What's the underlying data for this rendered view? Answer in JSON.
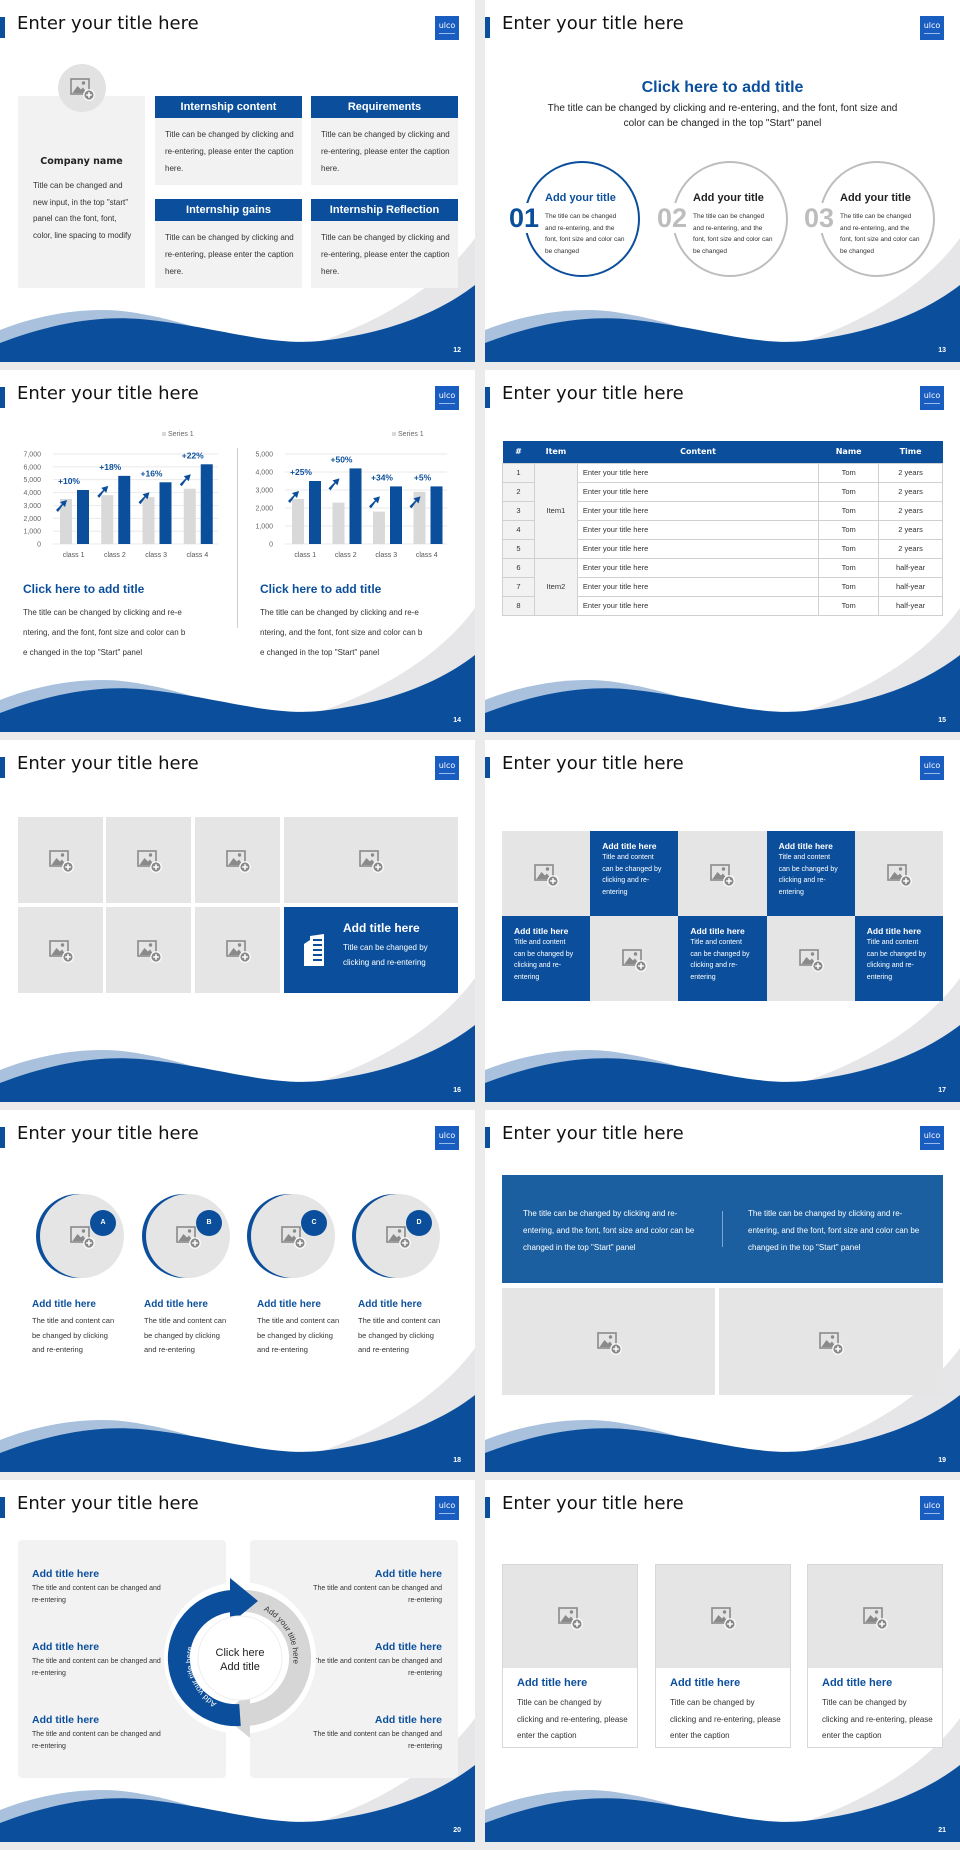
{
  "common": {
    "title": "Enter your title here",
    "logo": "ulco"
  },
  "colors": {
    "primary": "#0b4f9c",
    "panel": "#f2f2f2",
    "placeholder": "#e6e5e6",
    "secondary_gray": "#bdbdbd",
    "accent_light": "#a9c1dc"
  },
  "s12": {
    "page": "12",
    "company_name": "Company name",
    "company_text": "Title can be changed and new input, in the top \"start\" panel can the font, font, color, line spacing to modify",
    "boxes": [
      {
        "title": "Internship content",
        "text": "Title can be changed by clicking and re-entering, please enter the caption here."
      },
      {
        "title": "Requirements",
        "text": "Title can be changed by clicking and re-entering, please enter the caption here."
      },
      {
        "title": "Internship gains",
        "text": "Title can be changed by clicking and re-entering, please enter the caption here."
      },
      {
        "title": "Internship Reflection",
        "text": "Title can be changed by clicking and re-entering, please enter the caption here."
      }
    ]
  },
  "s13": {
    "page": "13",
    "heading": "Click here to add title",
    "subtitle": "The title can be changed by clicking and re-entering, and the font, font size and color can be changed in the top \"Start\" panel",
    "items": [
      {
        "num": "01",
        "title": "Add your title",
        "text": "The title can be changed and re-entering, and the font, font size and color can be changed"
      },
      {
        "num": "02",
        "title": "Add your title",
        "text": "The title can be changed and re-entering, and the font, font size and color can be changed"
      },
      {
        "num": "03",
        "title": "Add your title",
        "text": "The title can be changed and re-entering, and the font, font size and color can be changed"
      }
    ]
  },
  "s14": {
    "page": "14",
    "panels": [
      {
        "title": "Click here to add title",
        "lines": [
          "The title can be changed by clicking and re-e",
          "ntering, and the font, font size and color can b",
          "e changed in the top \"Start\" panel"
        ]
      },
      {
        "title": "Click here to add title",
        "lines": [
          "The title can be changed by clicking and re-e",
          "ntering, and the font, font size and color can b",
          "e changed in the top \"Start\" panel"
        ]
      }
    ]
  },
  "chart_data": [
    {
      "type": "bar",
      "legend": [
        "Series 1"
      ],
      "legend_position": "top-right",
      "categories": [
        "class 1",
        "class 2",
        "class 3",
        "class 4"
      ],
      "series": [
        {
          "name": "Series 1",
          "color": "#d9d9d9",
          "values": [
            3500,
            3800,
            3650,
            4300
          ]
        },
        {
          "color": "#0b4f9c",
          "values": [
            4200,
            5300,
            4800,
            6200
          ]
        }
      ],
      "annotations": [
        "+10%",
        "+18%",
        "+16%",
        "+22%"
      ],
      "ylim": [
        0,
        7000
      ],
      "yticks": [
        "0",
        "1,000",
        "2,000",
        "3,000",
        "4,000",
        "5,000",
        "6,000",
        "7,000"
      ],
      "grid": true
    },
    {
      "type": "bar",
      "legend": [
        "Series 1"
      ],
      "legend_position": "top-right",
      "categories": [
        "class 1",
        "class 2",
        "class 3",
        "class 4"
      ],
      "series": [
        {
          "name": "Series 1",
          "color": "#d9d9d9",
          "values": [
            2500,
            2300,
            1800,
            2900
          ]
        },
        {
          "color": "#0b4f9c",
          "values": [
            3500,
            4200,
            3200,
            3200
          ]
        }
      ],
      "annotations": [
        "+25%",
        "+50%",
        "+34%",
        "+5%"
      ],
      "ylim": [
        0,
        5000
      ],
      "yticks": [
        "0",
        "1,000",
        "2,000",
        "3,000",
        "4,000",
        "5,000"
      ],
      "grid": true
    }
  ],
  "s15": {
    "page": "15",
    "headers": [
      "#",
      "Item",
      "Content",
      "Name",
      "Time"
    ],
    "rows": [
      {
        "n": "1",
        "item": "Item1",
        "content": "Enter your title here",
        "name": "Tom",
        "time": "2 years"
      },
      {
        "n": "2",
        "item": "Item1",
        "content": "Enter your title here",
        "name": "Tom",
        "time": "2 years"
      },
      {
        "n": "3",
        "item": "Item1",
        "content": "Enter your title here",
        "name": "Tom",
        "time": "2 years"
      },
      {
        "n": "4",
        "item": "Item1",
        "content": "Enter your title here",
        "name": "Tom",
        "time": "2 years"
      },
      {
        "n": "5",
        "item": "Item1",
        "content": "Enter your title here",
        "name": "Tom",
        "time": "2 years"
      },
      {
        "n": "6",
        "item": "Item2",
        "content": "Enter your title here",
        "name": "Tom",
        "time": "half-year"
      },
      {
        "n": "7",
        "item": "Item2",
        "content": "Enter your title here",
        "name": "Tom",
        "time": "half-year"
      },
      {
        "n": "8",
        "item": "Item2",
        "content": "Enter your title here",
        "name": "Tom",
        "time": "half-year"
      }
    ]
  },
  "s16": {
    "page": "16",
    "feature": {
      "title": "Add title here",
      "text": "Title can be changed by clicking and re-entering"
    }
  },
  "s17": {
    "page": "17",
    "cards": [
      {
        "title": "Add title here",
        "text": "Title and content can be changed by clicking and re-entering"
      },
      {
        "title": "Add title here",
        "text": "Title and content can be changed by clicking and re-entering"
      },
      {
        "title": "Add title here",
        "text": "Title and content can be changed by clicking and re-entering"
      },
      {
        "title": "Add title here",
        "text": "Title and content can be changed by clicking and re-entering"
      },
      {
        "title": "Add title here",
        "text": "Title and content can be changed by clicking and re-entering"
      }
    ]
  },
  "s18": {
    "page": "18",
    "items": [
      {
        "badge": "A",
        "title": "Add title here",
        "text": "The title and content can be changed by clicking and re-entering"
      },
      {
        "badge": "B",
        "title": "Add title here",
        "text": "The title and content can be changed by clicking and re-entering"
      },
      {
        "badge": "C",
        "title": "Add title here",
        "text": "The title and content can be changed by clicking and re-entering"
      },
      {
        "badge": "D",
        "title": "Add title here",
        "text": "The title and content can be changed by clicking and re-entering"
      }
    ]
  },
  "s19": {
    "page": "19",
    "texts": [
      "The title can be changed by clicking and re-entering, and the font, font size and color can be changed in the top \"Start\" panel",
      "The title can be changed by clicking and re-entering, and the font, font size and color can be changed in the top \"Start\" panel"
    ]
  },
  "s20": {
    "page": "20",
    "left": [
      {
        "title": "Add title here",
        "text": "The title and content can be changed and re-entering"
      },
      {
        "title": "Add title here",
        "text": "The title and content can be changed and re-entering"
      },
      {
        "title": "Add title here",
        "text": "The title and content can be changed and re-entering"
      }
    ],
    "right": [
      {
        "title": "Add title here",
        "text": "The title and content can be changed and re-entering"
      },
      {
        "title": "Add title here",
        "text": "The title and content can be changed and re-entering"
      },
      {
        "title": "Add title here",
        "text": "The title and content can be changed and re-entering"
      }
    ],
    "center": [
      "Click here",
      "Add title"
    ],
    "arc_labels": [
      "Add your title here",
      "Add your title here"
    ]
  },
  "s21": {
    "page": "21",
    "cards": [
      {
        "title": "Add title here",
        "text": "Title can be changed by clicking and re-entering, please enter the caption"
      },
      {
        "title": "Add title here",
        "text": "Title can be changed by clicking and re-entering, please enter the caption"
      },
      {
        "title": "Add title here",
        "text": "Title can be changed by clicking and re-entering, please enter the caption"
      }
    ]
  }
}
